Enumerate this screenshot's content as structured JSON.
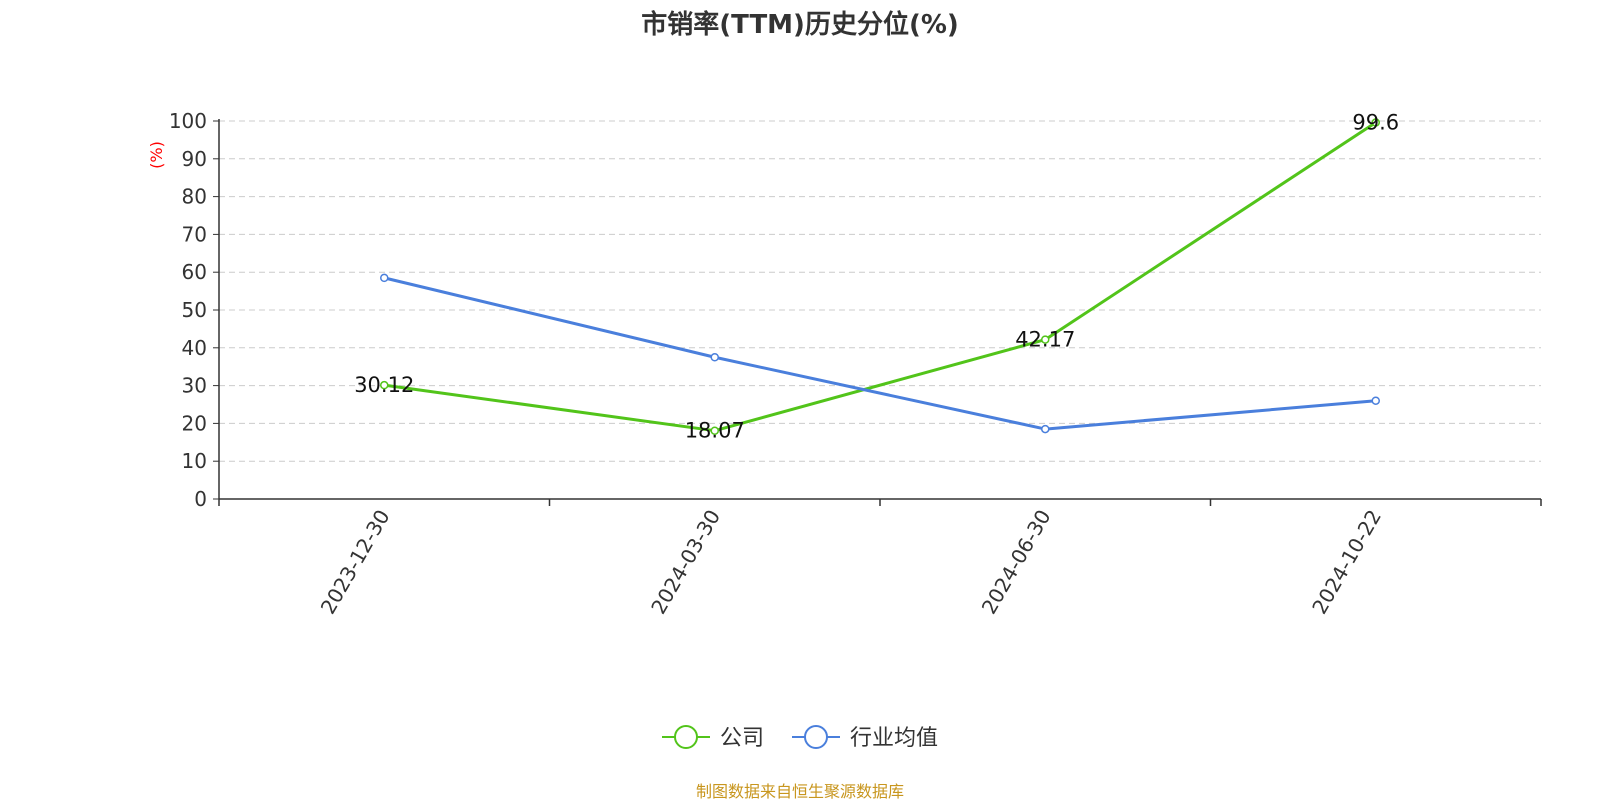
{
  "chart_data": {
    "type": "line",
    "title": "市销率(TTM)历史分位(%)",
    "ylabel": "(%)",
    "ylabel_color": "#ff0000",
    "x": [
      "2023-12-30",
      "2024-03-30",
      "2024-06-30",
      "2024-10-22"
    ],
    "ylim": [
      0,
      100
    ],
    "yticks": [
      0,
      10,
      20,
      30,
      40,
      50,
      60,
      70,
      80,
      90,
      100
    ],
    "grid": true,
    "legend_position": "bottom-center",
    "series": [
      {
        "name": "公司",
        "color": "#52c41a",
        "values": [
          30.12,
          18.07,
          42.17,
          99.6
        ],
        "labels": [
          "30.12",
          "18.07",
          "42.17",
          "99.6"
        ]
      },
      {
        "name": "行业均值",
        "color": "#4a7fdc",
        "values": [
          58.5,
          37.5,
          18.5,
          26.0
        ]
      }
    ]
  },
  "source_note": "制图数据来自恒生聚源数据库"
}
